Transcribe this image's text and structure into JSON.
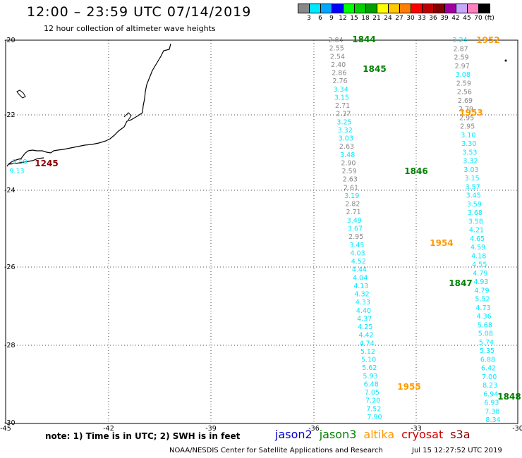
{
  "header": {
    "title": "12:00 – 23:59 UTC 07/14/2019",
    "subtitle": "12 hour collection of altimeter wave heights"
  },
  "color_scale": {
    "colors": [
      "#888888",
      "#00e8ff",
      "#00a8ff",
      "#0000ff",
      "#00ff00",
      "#00d000",
      "#00a000",
      "#ffff00",
      "#ffc800",
      "#ff8000",
      "#ff0000",
      "#c00000",
      "#800000",
      "#a000a0",
      "#c8a8ff",
      "#ff80c0",
      "#000000"
    ],
    "labels": [
      "3",
      "6",
      "9",
      "12",
      "15",
      "18",
      "21",
      "24",
      "27",
      "30",
      "33",
      "36",
      "39",
      "42",
      "45",
      "70",
      "(ft)"
    ]
  },
  "axes": {
    "x_ticks": [
      "-45",
      "-42",
      "-39",
      "-36",
      "-33",
      "-30"
    ],
    "y_ticks": [
      "-20",
      "-22",
      "-24",
      "-26",
      "-28",
      "-30"
    ]
  },
  "tracks": [
    {
      "satellite": "jason3",
      "color": "#8a8a8a",
      "time_labels": [
        {
          "text": "1844"
        },
        {
          "text": "1845"
        },
        {
          "text": "1846"
        },
        {
          "text": "1847"
        },
        {
          "text": "1848"
        }
      ],
      "points": [
        "2.84",
        "2.55",
        "2.54",
        "2.40",
        "2.86",
        "2.76",
        "3.34",
        "3.15",
        "2.71",
        "2.37",
        "3.25",
        "3.32",
        "3.03",
        "2.63",
        "3.48",
        "2.90",
        "2.59",
        "2.63",
        "2.61",
        "3.19",
        "2.82",
        "2.71",
        "3.49",
        "3.67",
        "2.95",
        "3.45",
        "4.03",
        "4.52",
        "4.44",
        "4.04",
        "4.13",
        "4.32",
        "4.33",
        "4.40",
        "4.37",
        "4.25",
        "4.42",
        "4.74",
        "5.12",
        "5.10",
        "5.62",
        "5.93",
        "6.48",
        "7.05",
        "7.20",
        "7.52",
        "7.90"
      ]
    },
    {
      "satellite": "altika",
      "color": "#8a8a8a",
      "time_labels": [
        {
          "text": "1952"
        },
        {
          "text": "1953"
        },
        {
          "text": "1954"
        },
        {
          "text": "1955"
        }
      ],
      "points": [
        "3.24",
        "2.87",
        "2.59",
        "2.97",
        "3.08",
        "2.59",
        "2.56",
        "2.69",
        "2.79",
        "2.95",
        "2.95",
        "3.10",
        "3.30",
        "3.53",
        "3.32",
        "3.03",
        "3.15",
        "3.57",
        "3.45",
        "3.59",
        "3.68",
        "3.58",
        "4.21",
        "4.65",
        "4.59",
        "4.18",
        "4.55",
        "4.79",
        "4.93",
        "4.79",
        "5.52",
        "4.73",
        "4.36",
        "5.68",
        "5.08",
        "5.74",
        "5.35",
        "6.88",
        "6.42",
        "7.00",
        "8.23",
        "6.94",
        "6.93",
        "7.38",
        "8.34"
      ]
    },
    {
      "satellite": "cryosat",
      "time_labels": [
        {
          "text": "1245"
        }
      ],
      "points": [
        "9.59",
        "9.13"
      ]
    }
  ],
  "legend": {
    "note": "note: 1) Time is in UTC; 2) SWH is in feet",
    "satellites": [
      {
        "name": "jason2",
        "color": "#0000cc"
      },
      {
        "name": "jason3",
        "color": "#008000"
      },
      {
        "name": "altika",
        "color": "#ff9900"
      },
      {
        "name": "cryosat",
        "color": "#cc0000"
      },
      {
        "name": "s3a",
        "color": "#880000"
      }
    ]
  },
  "footer": {
    "credit": "NOAA/NESDIS Center for Satellite Applications and Research",
    "timestamp": "Jul 15 12:27:52 UTC 2019"
  }
}
